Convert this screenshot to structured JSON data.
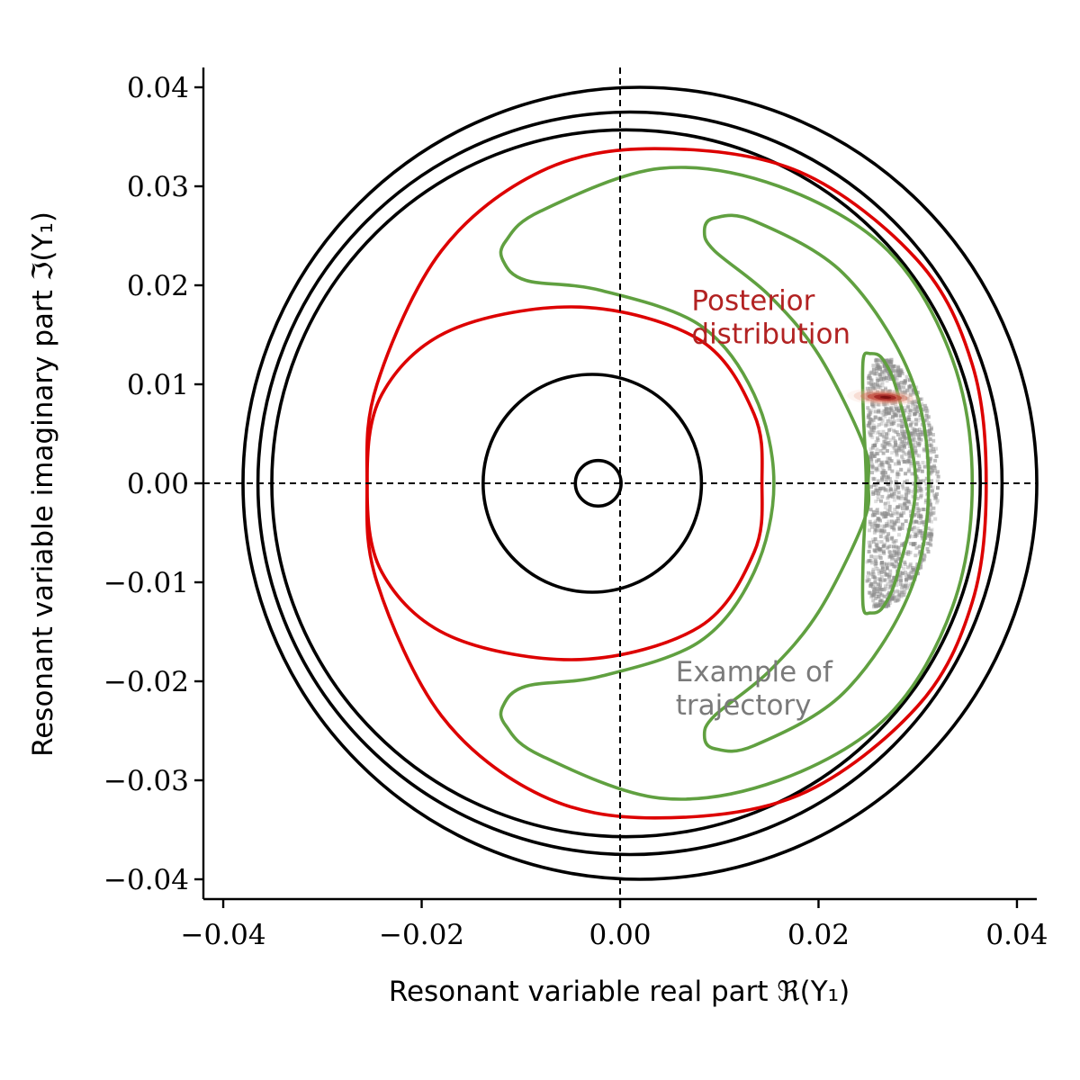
{
  "chart_data": {
    "type": "line",
    "title": "",
    "xlabel": "Resonant variable real part ℜ(Y₁)",
    "ylabel": "Resonant variable imaginary part ℑ(Y₁)",
    "xlim": [
      -0.042,
      0.042
    ],
    "ylim": [
      -0.042,
      0.042
    ],
    "xticks": [
      -0.04,
      -0.02,
      0.0,
      0.02,
      0.04
    ],
    "yticks": [
      -0.04,
      -0.03,
      -0.02,
      -0.01,
      0.0,
      0.01,
      0.02,
      0.03,
      0.04
    ],
    "xtick_labels": [
      "−0.04",
      "−0.02",
      "0.00",
      "0.02",
      "0.04"
    ],
    "ytick_labels": [
      "−0.04",
      "−0.03",
      "−0.02",
      "−0.01",
      "0.00",
      "0.01",
      "0.02",
      "0.03",
      "0.04"
    ],
    "grid": false,
    "reference_lines": {
      "x": 0.0,
      "y": 0.0,
      "style": "dashed",
      "color": "#000000"
    },
    "colors": {
      "circulating": "#000000",
      "separatrix": "#dd0000",
      "trajectory": "#60a040",
      "samples": "#8c8c8c",
      "posterior": "#b22222",
      "annotation_trajectory": "#7a7a7a"
    },
    "series": [
      {
        "kind": "circle",
        "color": "#000000",
        "center": [
          0.002,
          0.0
        ],
        "radius": 0.04
      },
      {
        "kind": "circle",
        "color": "#000000",
        "center": [
          0.001,
          0.0
        ],
        "radius": 0.0375
      },
      {
        "kind": "circle",
        "color": "#000000",
        "center": [
          0.0006,
          0.0
        ],
        "radius": 0.0357
      },
      {
        "kind": "circle",
        "color": "#000000",
        "center": [
          -0.0028,
          0.0
        ],
        "radius": 0.011
      },
      {
        "kind": "circle",
        "color": "#000000",
        "center": [
          -0.0022,
          0.0
        ],
        "radius": 0.0023
      },
      {
        "kind": "separatrix",
        "color": "#dd0000",
        "outer_lobe": [
          [
            -0.0255,
            0.0
          ],
          [
            -0.0245,
            0.01
          ],
          [
            -0.018,
            0.0235
          ],
          [
            -0.008,
            0.0315
          ],
          [
            0.0035,
            0.0338
          ],
          [
            0.018,
            0.0315
          ],
          [
            0.03,
            0.0225
          ],
          [
            0.0355,
            0.012
          ],
          [
            0.0369,
            0.0
          ],
          [
            0.0355,
            -0.012
          ],
          [
            0.03,
            -0.0225
          ],
          [
            0.018,
            -0.0315
          ],
          [
            0.0035,
            -0.0338
          ],
          [
            -0.008,
            -0.0315
          ],
          [
            -0.018,
            -0.0235
          ],
          [
            -0.0245,
            -0.01
          ],
          [
            -0.0255,
            0.0
          ]
        ],
        "inner_lobe": [
          [
            -0.0255,
            0.0
          ],
          [
            -0.024,
            0.009
          ],
          [
            -0.017,
            0.0155
          ],
          [
            -0.004,
            0.0178
          ],
          [
            0.008,
            0.0145
          ],
          [
            0.0135,
            0.007
          ],
          [
            0.0143,
            0.0
          ],
          [
            0.0135,
            -0.007
          ],
          [
            0.008,
            -0.0145
          ],
          [
            -0.004,
            -0.0178
          ],
          [
            -0.017,
            -0.0155
          ],
          [
            -0.024,
            -0.009
          ],
          [
            -0.0255,
            0.0
          ]
        ]
      },
      {
        "kind": "trajectory",
        "color": "#60a040",
        "points": [
          [
            -0.0118,
            0.0225
          ],
          [
            -0.0095,
            0.0205
          ],
          [
            -0.002,
            0.0195
          ],
          [
            0.008,
            0.016
          ],
          [
            0.0135,
            0.009
          ],
          [
            0.0155,
            0.0
          ],
          [
            0.0135,
            -0.009
          ],
          [
            0.008,
            -0.016
          ],
          [
            -0.002,
            -0.0195
          ],
          [
            -0.0095,
            -0.0205
          ],
          [
            -0.0118,
            -0.0225
          ],
          [
            -0.0115,
            -0.0245
          ],
          [
            -0.008,
            -0.0275
          ],
          [
            0.004,
            -0.0318
          ],
          [
            0.016,
            -0.03
          ],
          [
            0.027,
            -0.0235
          ],
          [
            0.0335,
            -0.0125
          ],
          [
            0.0355,
            0.0
          ],
          [
            0.0335,
            0.0125
          ],
          [
            0.027,
            0.0235
          ],
          [
            0.016,
            0.03
          ],
          [
            0.004,
            0.0318
          ],
          [
            -0.008,
            0.0275
          ],
          [
            -0.0115,
            0.0245
          ],
          [
            -0.0118,
            0.0225
          ]
        ]
      },
      {
        "kind": "trajectory",
        "color": "#60a040",
        "points": [
          [
            0.0085,
            0.0255
          ],
          [
            0.0095,
            0.0235
          ],
          [
            0.015,
            0.019
          ],
          [
            0.02,
            0.013
          ],
          [
            0.0245,
            0.004
          ],
          [
            0.025,
            0.0
          ],
          [
            0.0245,
            -0.004
          ],
          [
            0.02,
            -0.013
          ],
          [
            0.015,
            -0.019
          ],
          [
            0.0095,
            -0.0235
          ],
          [
            0.0085,
            -0.0255
          ],
          [
            0.0095,
            -0.0268
          ],
          [
            0.0135,
            -0.0265
          ],
          [
            0.0225,
            -0.0212
          ],
          [
            0.0292,
            -0.011
          ],
          [
            0.0311,
            0.0
          ],
          [
            0.0292,
            0.011
          ],
          [
            0.0225,
            0.0212
          ],
          [
            0.0135,
            0.0265
          ],
          [
            0.0095,
            0.0268
          ],
          [
            0.0085,
            0.0255
          ]
        ]
      },
      {
        "kind": "trajectory",
        "color": "#60a040",
        "points": [
          [
            0.0245,
            0.0125
          ],
          [
            0.0252,
            0.0131
          ],
          [
            0.0265,
            0.0125
          ],
          [
            0.028,
            0.009
          ],
          [
            0.0298,
            0.0
          ],
          [
            0.028,
            -0.009
          ],
          [
            0.0265,
            -0.0125
          ],
          [
            0.0252,
            -0.0131
          ],
          [
            0.0245,
            -0.0125
          ],
          [
            0.0245,
            -0.0075
          ],
          [
            0.0248,
            0.0
          ],
          [
            0.0245,
            0.0075
          ],
          [
            0.0245,
            0.0125
          ]
        ]
      },
      {
        "kind": "samples",
        "color": "#8c8c8c",
        "x_range": [
          0.0225,
          0.0305
        ],
        "y_range": [
          -0.0125,
          0.0125
        ]
      },
      {
        "kind": "posterior",
        "color": "#b22222",
        "center": [
          0.0265,
          0.0087
        ],
        "spread": [
          0.0025,
          0.0006
        ]
      }
    ],
    "annotations": [
      {
        "lines": [
          "Posterior",
          "distribution"
        ],
        "x": 0.0072,
        "y": 0.0175,
        "color": "#b22222"
      },
      {
        "lines": [
          "Example of",
          "trajectory"
        ],
        "x": 0.0056,
        "y": -0.02,
        "color": "#7a7a7a"
      }
    ]
  }
}
